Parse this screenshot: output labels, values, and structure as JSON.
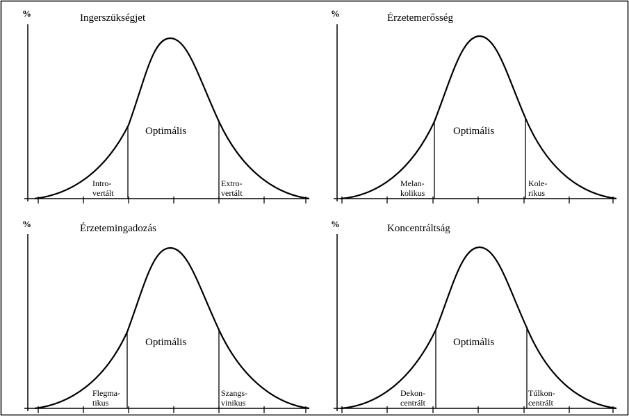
{
  "colors": {
    "background": "#ffffff",
    "ink": "#000000"
  },
  "panels": [
    {
      "percent_label": "%",
      "title": "Ingerszükségjet",
      "center_label": "Optimális",
      "left_label": [
        "Intro-",
        "vertált"
      ],
      "right_label": [
        "Extro-",
        "vertált"
      ]
    },
    {
      "percent_label": "%",
      "title": "Érzetemerősség",
      "center_label": "Optimális",
      "left_label": [
        "Melan-",
        "kolikus"
      ],
      "right_label": [
        "Kole-",
        "rikus"
      ]
    },
    {
      "percent_label": "%",
      "title": "Érzetemingadozás",
      "center_label": "Optimális",
      "left_label": [
        "Flegma-",
        "tikus"
      ],
      "right_label": [
        "Szangs-",
        "vinikus"
      ]
    },
    {
      "percent_label": "%",
      "title": "Koncentráltság",
      "center_label": "Optimális",
      "left_label": [
        "Dekon-",
        "centrált"
      ],
      "right_label": [
        "Túlkon-",
        "centrált"
      ]
    }
  ]
}
